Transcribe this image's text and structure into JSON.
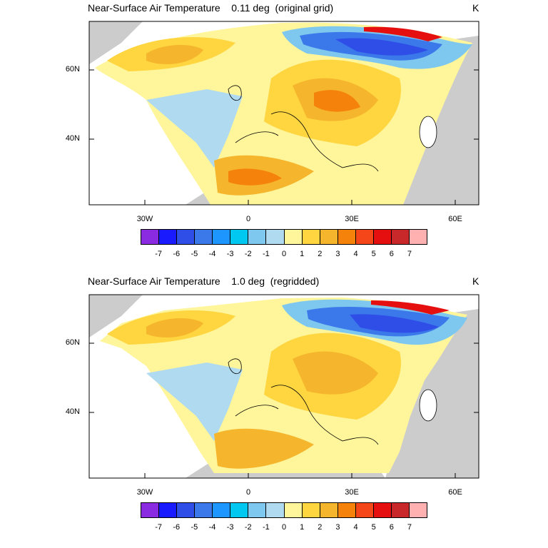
{
  "panels": [
    {
      "title": "Near-Surface Air Temperature    0.11 deg  (original grid)",
      "units": "K"
    },
    {
      "title": "Near-Surface Air Temperature    1.0 deg  (regridded)",
      "units": "K"
    }
  ],
  "axes": {
    "x_ticks": [
      "30W",
      "0",
      "30E",
      "60E"
    ],
    "y_ticks": [
      "60N",
      "40N"
    ]
  },
  "colorbar": {
    "labels": [
      "-7",
      "-6",
      "-5",
      "-4",
      "-3",
      "-2",
      "-1",
      "0",
      "1",
      "2",
      "3",
      "4",
      "5",
      "6",
      "7"
    ],
    "colors": [
      "#8a2be2",
      "#1a1aff",
      "#2f4ee8",
      "#3b78ea",
      "#1e96ff",
      "#00c8f0",
      "#7ec8f0",
      "#b0daf0",
      "#fff59a",
      "#ffd540",
      "#f5b52c",
      "#f5820a",
      "#f5461a",
      "#e60f10",
      "#c8282a",
      "#ffb0b0"
    ]
  }
}
